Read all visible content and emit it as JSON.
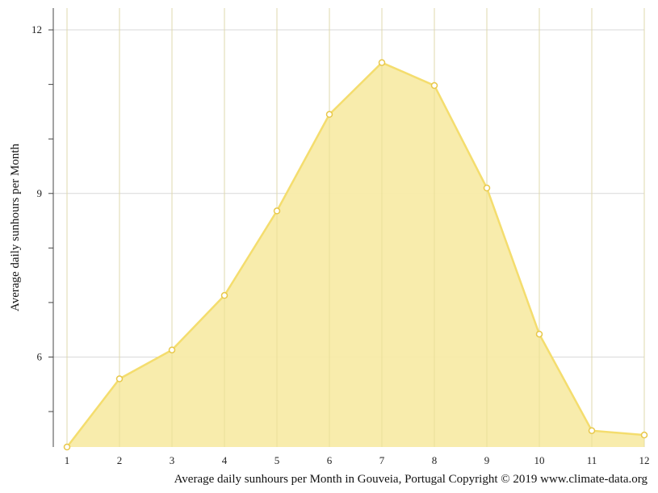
{
  "chart_data": {
    "type": "area",
    "title": "",
    "xlabel": "",
    "ylabel": "Average daily sunhours per Month",
    "caption": "Average daily sunhours per Month in Gouveia, Portugal Copyright © 2019 www.climate-data.org",
    "x": [
      1,
      2,
      3,
      4,
      5,
      6,
      7,
      8,
      9,
      10,
      11,
      12
    ],
    "x_tick_labels": [
      "1",
      "2",
      "3",
      "4",
      "5",
      "6",
      "7",
      "8",
      "9",
      "10",
      "11",
      "12"
    ],
    "y_tick_labels": [
      "6",
      "9",
      "12"
    ],
    "y_major_ticks": [
      6,
      9,
      12
    ],
    "y_minor_ticks": [
      5,
      7,
      8,
      10,
      11
    ],
    "ylim": [
      4.35,
      12.4
    ],
    "xlim": [
      1,
      12
    ],
    "grid": true,
    "series": [
      {
        "values": [
          4.35,
          5.6,
          6.13,
          7.13,
          8.68,
          10.45,
          11.4,
          10.98,
          9.1,
          6.42,
          4.65,
          4.57
        ],
        "color": "#f4dd6e",
        "fill": "#f8eba8"
      }
    ]
  }
}
